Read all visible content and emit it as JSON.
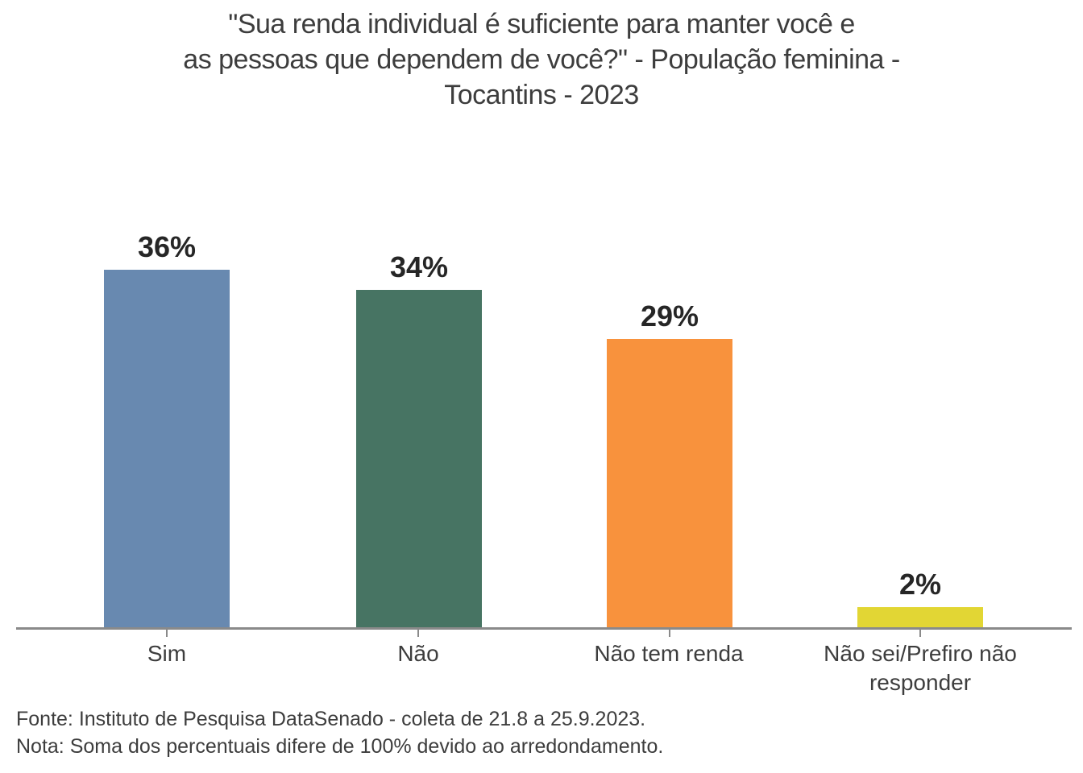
{
  "chart_data": {
    "type": "bar",
    "title": "\"Sua renda individual é suficiente para manter você e as pessoas que dependem de você?\" - População feminina - Tocantins - 2023",
    "title_lines": [
      "\"Sua renda individual é suficiente para manter você e",
      "as pessoas que dependem de você?\" - População feminina -",
      "Tocantins - 2023"
    ],
    "categories": [
      "Sim",
      "Não",
      "Não tem renda",
      "Não sei/Prefiro não responder"
    ],
    "values": [
      36,
      34,
      29,
      2
    ],
    "value_labels": [
      "36%",
      "34%",
      "29%",
      "2%"
    ],
    "unit": "%",
    "ylim": [
      0,
      40
    ],
    "grid": false,
    "legend": false,
    "bar_colors": [
      "#6889b0",
      "#477463",
      "#f8923d",
      "#e2d634"
    ],
    "axis_color": "#8a8a8a",
    "source": "Fonte: Instituto de Pesquisa DataSenado - coleta de 21.8 a 25.9.2023.",
    "note": "Nota: Soma dos percentuais difere de 100% devido ao arredondamento."
  }
}
